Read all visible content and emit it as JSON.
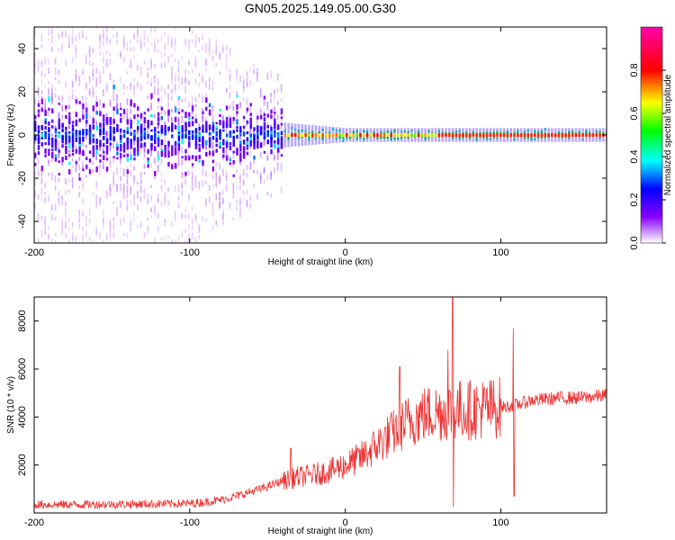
{
  "chart_data": [
    {
      "type": "heatmap",
      "title": "GN05.2025.149.05.00.G30",
      "xlabel": "Height of straight line (km)",
      "ylabel": "Frequency (Hz)",
      "xlim": [
        -200,
        168
      ],
      "ylim": [
        -50,
        50
      ],
      "xticks": [
        -200,
        -100,
        0,
        100
      ],
      "yticks": [
        -40,
        -20,
        0,
        20,
        40
      ],
      "colorbar": {
        "label": "Normalized spectral amplitude",
        "range": [
          0,
          1
        ],
        "ticks": [
          0.0,
          0.2,
          0.4,
          0.6,
          0.8
        ],
        "tick_labels": [
          "0.0",
          "0.2",
          "0.4",
          "0.6",
          "0.8"
        ],
        "colors": [
          "#ffffff",
          "#8a00ff",
          "#0000ff",
          "#00ffff",
          "#00ff00",
          "#ffff00",
          "#ff0000",
          "#ff00aa"
        ]
      },
      "description_values": {
        "center_frequency_hz": 0,
        "band_halfwidth_hz_by_height": [
          {
            "height_km": -200,
            "core_hz": 6,
            "scatter_hz": 50
          },
          {
            "height_km": -100,
            "core_hz": 5,
            "scatter_hz": 50
          },
          {
            "height_km": -50,
            "core_hz": 4,
            "scatter_hz": 30
          },
          {
            "height_km": 0,
            "core_hz": 2,
            "scatter_hz": 4
          },
          {
            "height_km": 100,
            "core_hz": 2,
            "scatter_hz": 4
          },
          {
            "height_km": 168,
            "core_hz": 2,
            "scatter_hz": 4
          }
        ]
      }
    },
    {
      "type": "line",
      "xlabel": "Height of straight line (km)",
      "ylabel": "SNR (10 * v/v)",
      "xlim": [
        -200,
        168
      ],
      "ylim": [
        0,
        9000
      ],
      "xticks": [
        -200,
        -100,
        0,
        100
      ],
      "yticks": [
        2000,
        4000,
        6000,
        8000
      ],
      "color": "#ee3333",
      "series": [
        {
          "x": [
            -200,
            -180,
            -160,
            -140,
            -120,
            -100,
            -90,
            -80,
            -70,
            -60,
            -50,
            -40,
            -30,
            -20,
            -10,
            0,
            10,
            20,
            30,
            40,
            50,
            60,
            70,
            80,
            90,
            100,
            110,
            120,
            130,
            140,
            150,
            160,
            168
          ],
          "values": [
            350,
            350,
            360,
            370,
            380,
            400,
            450,
            550,
            700,
            900,
            1100,
            1350,
            1500,
            1600,
            1750,
            2000,
            2300,
            2800,
            3300,
            3800,
            4100,
            4200,
            4300,
            4300,
            4350,
            4400,
            4500,
            4700,
            4750,
            4800,
            4800,
            4850,
            4900
          ]
        }
      ],
      "spikes": [
        {
          "x": -35,
          "y": 2700
        },
        {
          "x": 35,
          "y": 6100
        },
        {
          "x": 66,
          "y": 6800
        },
        {
          "x": 69,
          "y": 9000
        },
        {
          "x": 108,
          "y": 7700
        },
        {
          "x": 108.5,
          "y": 700
        },
        {
          "x": 69.5,
          "y": 250
        }
      ]
    }
  ]
}
